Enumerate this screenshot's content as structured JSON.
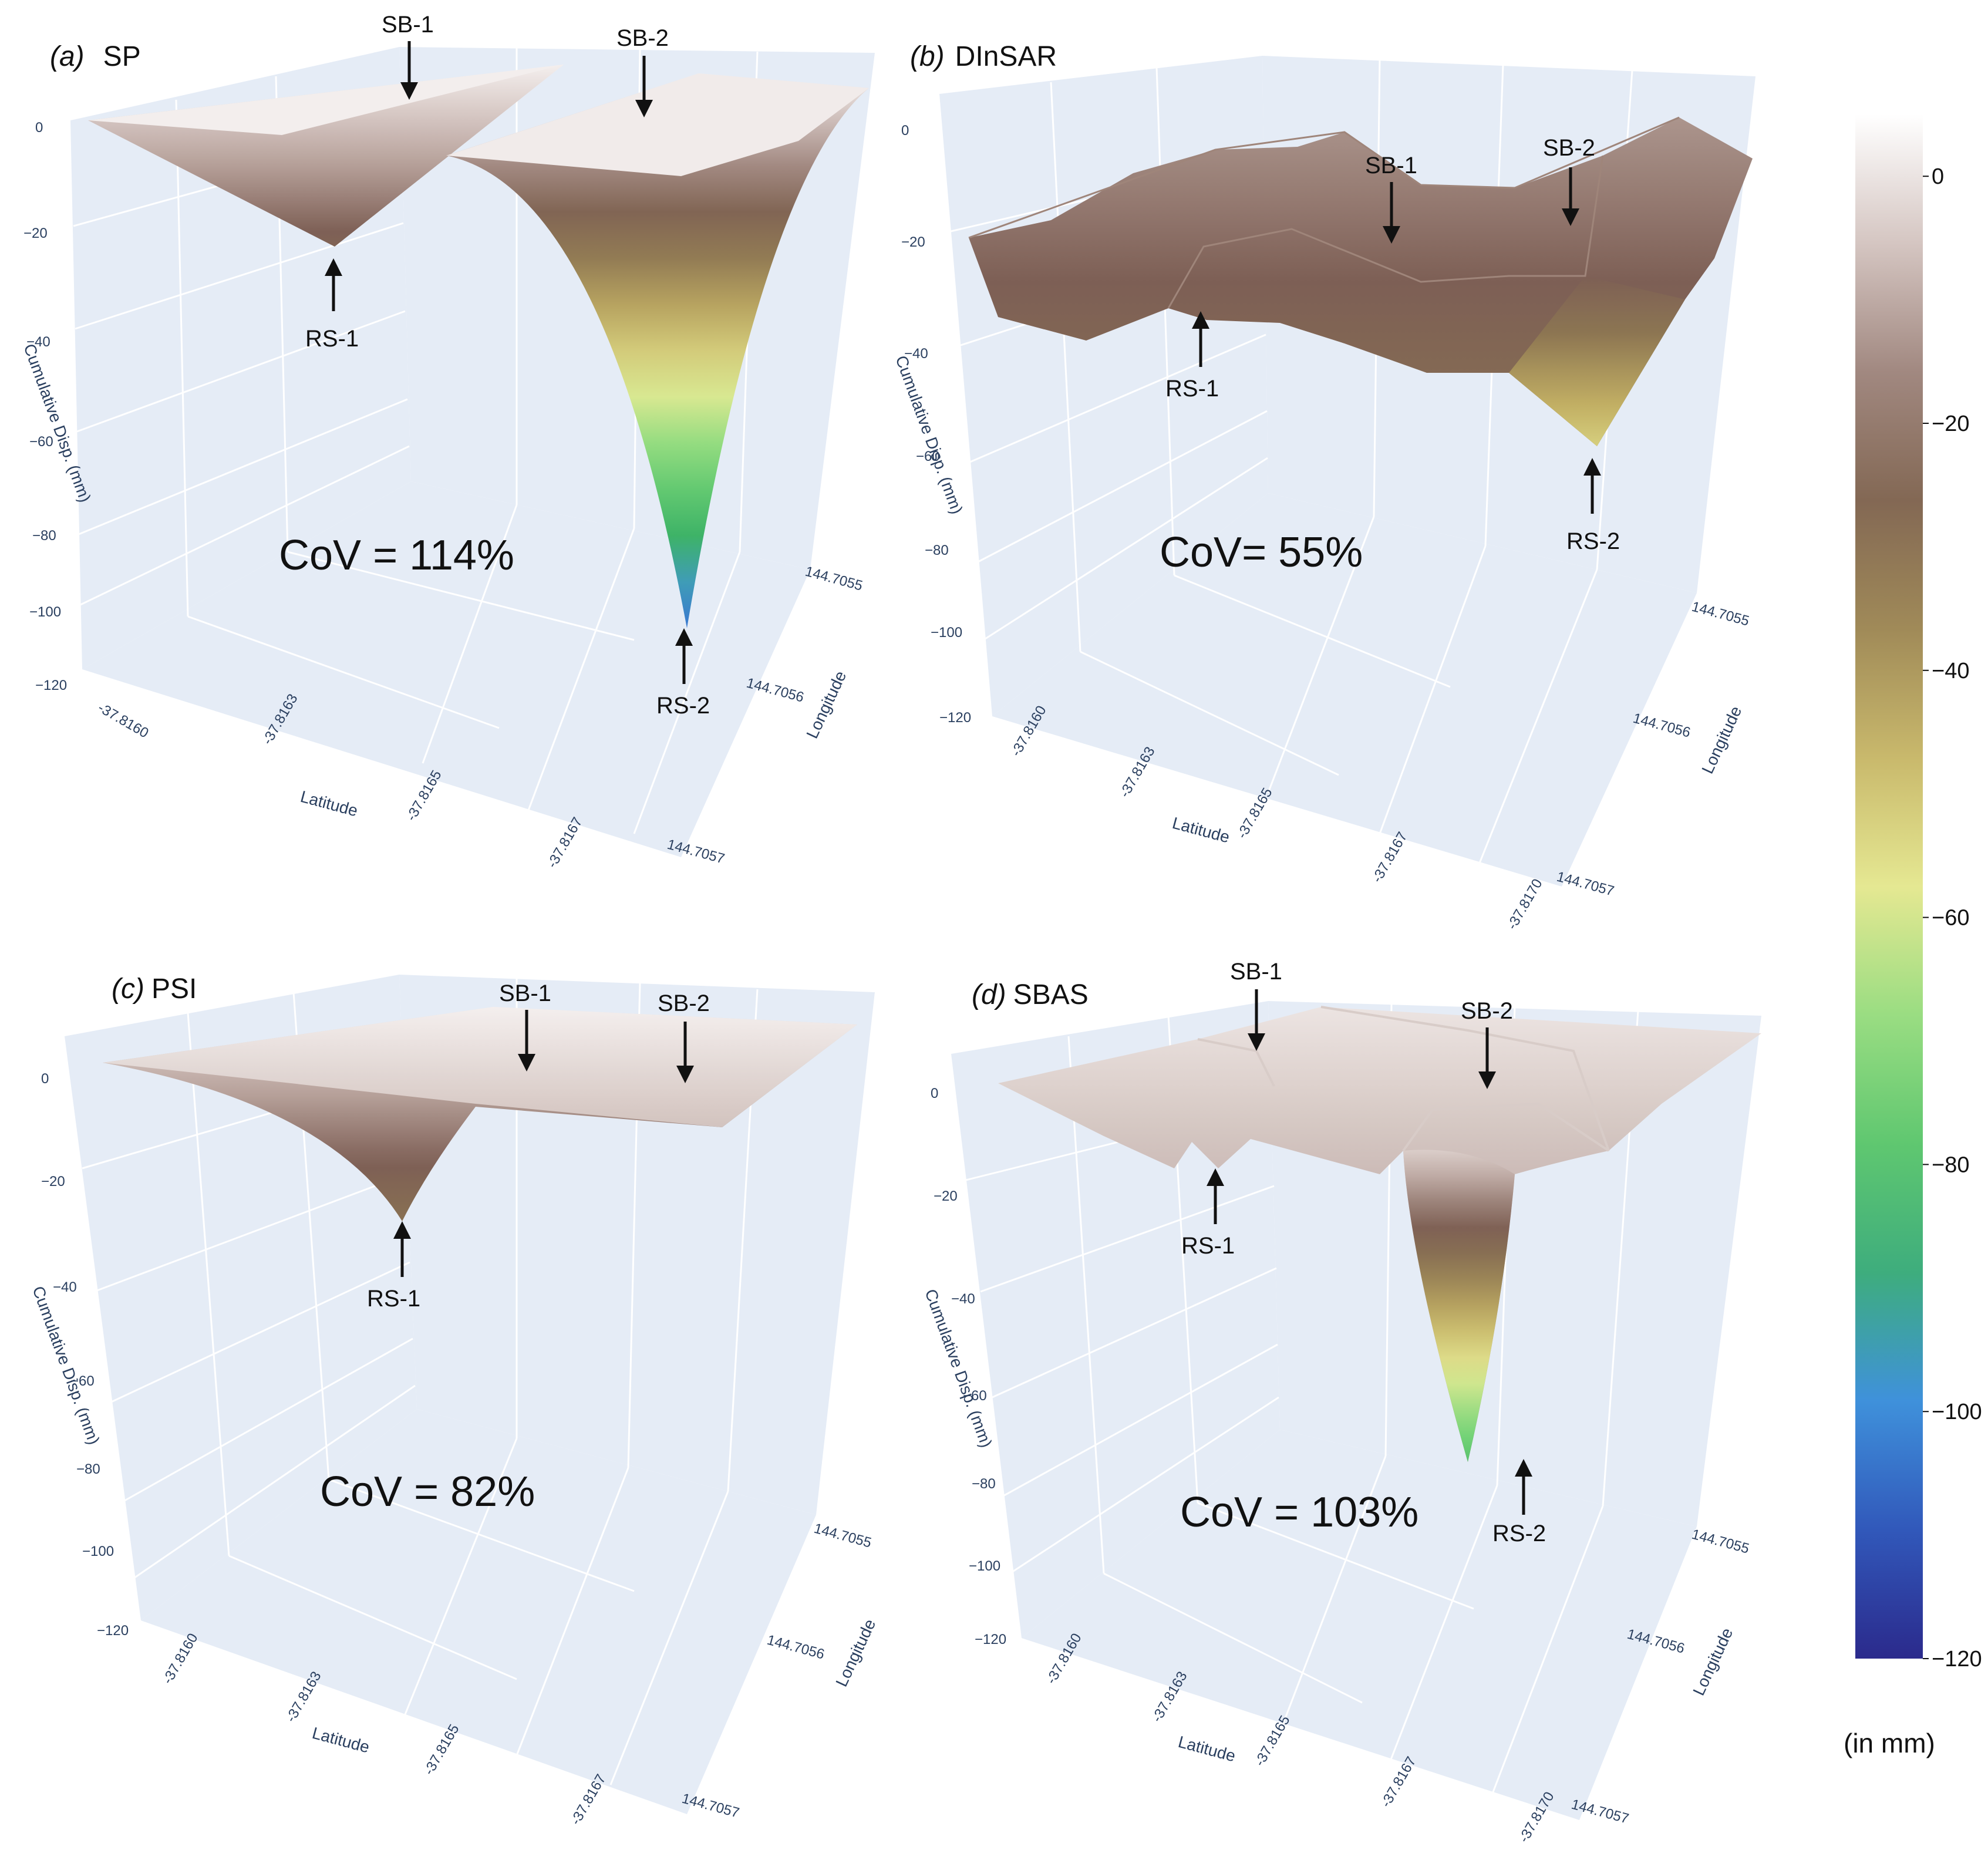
{
  "colorbar": {
    "ticks": [
      "0",
      "−20",
      "−40",
      "−60",
      "−80",
      "−100",
      "−120"
    ],
    "unit": "(in mm)",
    "range": [
      -120,
      5
    ],
    "stops": [
      {
        "v": 5,
        "color": "#ffffff"
      },
      {
        "v": 0,
        "color": "#ece4e2"
      },
      {
        "v": -12,
        "color": "#b8a29b"
      },
      {
        "v": -22,
        "color": "#7d5f55"
      },
      {
        "v": -32,
        "color": "#8c7552"
      },
      {
        "v": -45,
        "color": "#c3b064"
      },
      {
        "v": -58,
        "color": "#e6ea94"
      },
      {
        "v": -72,
        "color": "#7bd77a"
      },
      {
        "v": -86,
        "color": "#3eb464"
      },
      {
        "v": -100,
        "color": "#3f8fe2"
      },
      {
        "v": -110,
        "color": "#3056b8"
      },
      {
        "v": -120,
        "color": "#2b2a8c"
      }
    ]
  },
  "panels": [
    {
      "id": "a",
      "tag": "(a)",
      "name": "SP",
      "cov": "CoV = 114%",
      "z_ticks": [
        "0",
        "−20",
        "−40",
        "−60",
        "−80",
        "−100",
        "−120"
      ],
      "lat_ticks": [
        "-37.8160",
        "-37.8163",
        "-37.8165",
        "-37.8167"
      ],
      "lon_ticks": [
        "144.7055",
        "144.7056",
        "144.7057"
      ],
      "z_title": "Cumulative Disp. (mm)",
      "x_title": "Latitude",
      "y_title": "Longitude",
      "annotations": [
        "SB-1",
        "SB-2",
        "RS-1",
        "RS-2"
      ],
      "minima": {
        "RS-1": -24,
        "RS-2": -104
      }
    },
    {
      "id": "b",
      "tag": "(b)",
      "name": "DInSAR",
      "cov": "CoV= 55%",
      "z_ticks": [
        "0",
        "−20",
        "−40",
        "−60",
        "−80",
        "−100",
        "−120"
      ],
      "lat_ticks": [
        "-37.8160",
        "-37.8163",
        "-37.8165",
        "-37.8167",
        "-37.8170"
      ],
      "lon_ticks": [
        "144.7055",
        "144.7056",
        "144.7057"
      ],
      "z_title": "Cumulative Disp. (mm)",
      "x_title": "Latitude",
      "y_title": "Longitude",
      "annotations": [
        "SB-1",
        "SB-2",
        "RS-1",
        "RS-2"
      ],
      "minima": {
        "RS-1": -30,
        "RS-2": -52
      }
    },
    {
      "id": "c",
      "tag": "(c)",
      "name": "PSI",
      "cov": "CoV = 82%",
      "z_ticks": [
        "0",
        "−20",
        "−40",
        "−60",
        "−80",
        "−100",
        "−120"
      ],
      "lat_ticks": [
        "-37.8160",
        "-37.8163",
        "-37.8165",
        "-37.8167"
      ],
      "lon_ticks": [
        "144.7055",
        "144.7056",
        "144.7057"
      ],
      "z_title": "Cumulative Disp. (mm)",
      "x_title": "Latitude",
      "y_title": "Longitude",
      "annotations": [
        "SB-1",
        "SB-2",
        "RS-1"
      ],
      "minima": {
        "RS-1": -30
      }
    },
    {
      "id": "d",
      "tag": "(d)",
      "name": "SBAS",
      "cov": "CoV = 103%",
      "z_ticks": [
        "0",
        "−20",
        "−40",
        "−60",
        "−80",
        "−100",
        "−120"
      ],
      "lat_ticks": [
        "-37.8160",
        "-37.8163",
        "-37.8165",
        "-37.8167",
        "-37.8170"
      ],
      "lon_ticks": [
        "144.7055",
        "144.7056",
        "144.7057"
      ],
      "z_title": "Cumulative Disp. (mm)",
      "x_title": "Latitude",
      "y_title": "Longitude",
      "annotations": [
        "SB-1",
        "SB-2",
        "RS-1",
        "RS-2"
      ],
      "minima": {
        "RS-1": -17,
        "RS-2": -80
      }
    }
  ],
  "chart_data": [
    {
      "type": "surface",
      "title": "(a) SP",
      "zlabel": "Cumulative Disp. (mm)",
      "xlabel": "Latitude",
      "ylabel": "Longitude",
      "zlim": [
        -120,
        0
      ],
      "annotation": "CoV = 114%",
      "points": [
        {
          "name": "SB-1",
          "value": 0
        },
        {
          "name": "SB-2",
          "value": 0
        },
        {
          "name": "RS-1",
          "value": -24
        },
        {
          "name": "RS-2",
          "value": -104
        }
      ]
    },
    {
      "type": "surface",
      "title": "(b) DInSAR",
      "zlabel": "Cumulative Disp. (mm)",
      "xlabel": "Latitude",
      "ylabel": "Longitude",
      "zlim": [
        -120,
        0
      ],
      "annotation": "CoV= 55%",
      "points": [
        {
          "name": "SB-1",
          "value": -20
        },
        {
          "name": "SB-2",
          "value": -18
        },
        {
          "name": "RS-1",
          "value": -30
        },
        {
          "name": "RS-2",
          "value": -52
        }
      ]
    },
    {
      "type": "surface",
      "title": "(c) PSI",
      "zlabel": "Cumulative Disp. (mm)",
      "xlabel": "Latitude",
      "ylabel": "Longitude",
      "zlim": [
        -120,
        0
      ],
      "annotation": "CoV = 82%",
      "points": [
        {
          "name": "SB-1",
          "value": -2
        },
        {
          "name": "SB-2",
          "value": -2
        },
        {
          "name": "RS-1",
          "value": -30
        }
      ]
    },
    {
      "type": "surface",
      "title": "(d) SBAS",
      "zlabel": "Cumulative Disp. (mm)",
      "xlabel": "Latitude",
      "ylabel": "Longitude",
      "zlim": [
        -120,
        0
      ],
      "annotation": "CoV = 103%",
      "points": [
        {
          "name": "SB-1",
          "value": -2
        },
        {
          "name": "SB-2",
          "value": -3
        },
        {
          "name": "RS-1",
          "value": -17
        },
        {
          "name": "RS-2",
          "value": -80
        }
      ]
    }
  ]
}
